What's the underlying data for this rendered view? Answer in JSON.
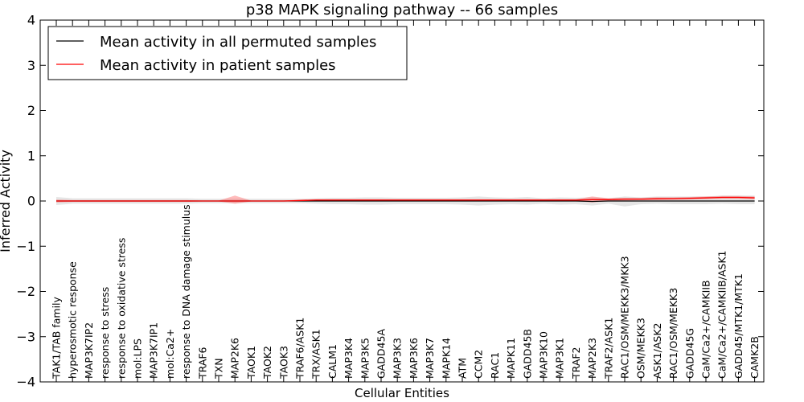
{
  "chart_data": {
    "type": "line",
    "title": "p38 MAPK signaling pathway -- 66 samples",
    "xlabel": "Cellular Entities",
    "ylabel": "Inferred Activity",
    "ylim": [
      -4,
      4
    ],
    "yticks": [
      -4,
      -3,
      -2,
      -1,
      0,
      1,
      2,
      3,
      4
    ],
    "ytick_labels": [
      "−4",
      "−3",
      "−2",
      "−1",
      "0",
      "1",
      "2",
      "3",
      "4"
    ],
    "legend_position": "top-left",
    "categories": [
      "TAK1/TAB family",
      "hyperosmotic response",
      "MAP3K7IP2",
      "response to stress",
      "response to oxidative stress",
      "mol:LPS",
      "MAP3K7IP1",
      "mol:Ca2+",
      "response to DNA damage stimulus",
      "TRAF6",
      "TXN",
      "MAP2K6",
      "TAOK1",
      "TAOK2",
      "TAOK3",
      "TRAF6/ASK1",
      "TRX/ASK1",
      "CALM1",
      "MAP3K4",
      "MAP3K5",
      "GADD45A",
      "MAP3K3",
      "MAP3K6",
      "MAP3K7",
      "MAPK14",
      "ATM",
      "CCM2",
      "RAC1",
      "MAPK11",
      "GADD45B",
      "MAP3K10",
      "MAP3K1",
      "TRAF2",
      "MAP2K3",
      "TRAF2/ASK1",
      "RAC1/OSM/MEKK3/MKK3",
      "OSM/MEKK3",
      "ASK1/ASK2",
      "RAC1/OSM/MEKK3",
      "GADD45G",
      "CaM/Ca2+/CAMKIIB",
      "CaM/Ca2+/CAMKIIB/ASK1",
      "GADD45/MTK1/MTK1",
      "CAMK2B"
    ],
    "series": [
      {
        "name": "Mean activity in all permuted samples",
        "color": "#000000",
        "values": [
          0,
          0,
          0,
          0,
          0,
          0,
          0,
          0,
          0,
          0,
          0,
          0,
          0,
          0,
          0,
          0,
          0,
          0,
          0,
          0,
          0,
          0,
          0,
          0,
          0,
          0,
          0,
          0,
          0,
          0,
          0,
          0,
          0,
          -0.01,
          0,
          0,
          0,
          0,
          0,
          0,
          0,
          0,
          0,
          0
        ],
        "band_low": [
          -0.09,
          -0.06,
          -0.06,
          -0.06,
          -0.06,
          -0.06,
          -0.06,
          -0.06,
          -0.06,
          -0.05,
          -0.05,
          -0.05,
          -0.05,
          -0.05,
          -0.05,
          -0.05,
          -0.06,
          -0.07,
          -0.07,
          -0.08,
          -0.08,
          -0.07,
          -0.07,
          -0.07,
          -0.07,
          -0.08,
          -0.1,
          -0.08,
          -0.07,
          -0.08,
          -0.06,
          -0.08,
          -0.07,
          -0.1,
          -0.06,
          -0.12,
          -0.07,
          -0.06,
          -0.07,
          -0.07,
          -0.07,
          -0.06,
          -0.07,
          -0.07
        ],
        "band_high": [
          0.09,
          0.06,
          0.06,
          0.06,
          0.06,
          0.06,
          0.06,
          0.06,
          0.06,
          0.05,
          0.05,
          0.05,
          0.05,
          0.05,
          0.05,
          0.05,
          0.06,
          0.07,
          0.07,
          0.08,
          0.08,
          0.07,
          0.07,
          0.07,
          0.07,
          0.08,
          0.1,
          0.08,
          0.07,
          0.09,
          0.06,
          0.08,
          0.07,
          0.08,
          0.06,
          0.1,
          0.08,
          0.1,
          0.1,
          0.1,
          0.1,
          0.12,
          0.12,
          0.12
        ]
      },
      {
        "name": "Mean activity in patient samples",
        "color": "#ff0000",
        "values": [
          0,
          0,
          0,
          0,
          0,
          0,
          0,
          0,
          0,
          0,
          0,
          0,
          0,
          0,
          0,
          0.01,
          0.02,
          0.02,
          0.02,
          0.02,
          0.02,
          0.02,
          0.02,
          0.02,
          0.02,
          0.02,
          0.02,
          0.02,
          0.02,
          0.02,
          0.02,
          0.02,
          0.02,
          0.03,
          0.03,
          0.04,
          0.04,
          0.05,
          0.05,
          0.06,
          0.07,
          0.08,
          0.08,
          0.07
        ],
        "band_low": [
          -0.03,
          -0.02,
          -0.02,
          -0.02,
          -0.02,
          -0.02,
          -0.02,
          -0.02,
          -0.02,
          -0.01,
          -0.01,
          -0.06,
          -0.01,
          -0.01,
          -0.01,
          -0.01,
          0,
          0,
          0,
          0,
          0,
          0,
          0,
          0,
          0,
          0,
          0,
          0,
          0,
          0,
          0,
          0,
          0,
          -0.03,
          0,
          0.01,
          0.02,
          0.02,
          0.03,
          0.03,
          0.04,
          0.05,
          0.05,
          0.04
        ],
        "band_high": [
          0.03,
          0.02,
          0.02,
          0.02,
          0.02,
          0.02,
          0.02,
          0.02,
          0.02,
          0.01,
          0.01,
          0.12,
          0.01,
          0.01,
          0.01,
          0.03,
          0.04,
          0.04,
          0.04,
          0.04,
          0.04,
          0.04,
          0.04,
          0.04,
          0.04,
          0.04,
          0.04,
          0.04,
          0.04,
          0.04,
          0.04,
          0.04,
          0.04,
          0.1,
          0.06,
          0.07,
          0.07,
          0.08,
          0.08,
          0.09,
          0.1,
          0.11,
          0.11,
          0.1
        ]
      }
    ]
  }
}
